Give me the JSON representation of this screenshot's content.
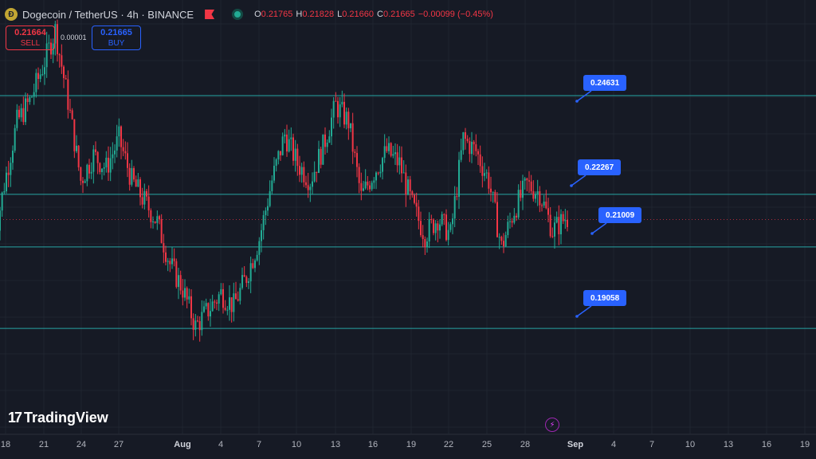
{
  "header": {
    "title": "Dogecoin / TetherUS · 4h · BINANCE",
    "ohlc": {
      "o_label": "O",
      "o": "0.21765",
      "h_label": "H",
      "h": "0.21828",
      "l_label": "L",
      "l": "0.21660",
      "c_label": "C",
      "c": "0.21665",
      "change": "−0.00099 (−0.45%)"
    }
  },
  "trade": {
    "sell_price": "0.21664",
    "sell_label": "SELL",
    "spread": "0.00001",
    "buy_price": "0.21665",
    "buy_label": "BUY"
  },
  "branding": {
    "logo_text": "TradingView"
  },
  "chart_data": {
    "type": "candlestick",
    "title": "Dogecoin / TetherUS · 4h · BINANCE",
    "x_tick_labels": [
      "18",
      "21",
      "24",
      "27",
      "Aug",
      "4",
      "7",
      "10",
      "13",
      "16",
      "19",
      "22",
      "25",
      "28",
      "Sep",
      "4",
      "7",
      "10",
      "13",
      "16",
      "19"
    ],
    "horizontal_levels": [
      0.24631,
      0.22267,
      0.21009,
      0.19058
    ],
    "current_price": 0.21665,
    "ylim": [
      0.17,
      0.265
    ],
    "colors": {
      "up": "#22ab94",
      "down": "#f23645",
      "level_line": "#26a5a5",
      "tag": "#2962ff"
    },
    "series_anchors": [
      {
        "date": "Jul 17",
        "price": 0.208
      },
      {
        "date": "Jul 18",
        "price": 0.225
      },
      {
        "date": "Jul 19",
        "price": 0.24
      },
      {
        "date": "Jul 20",
        "price": 0.245
      },
      {
        "date": "Jul 21",
        "price": 0.253
      },
      {
        "date": "Jul 22",
        "price": 0.262
      },
      {
        "date": "Jul 23",
        "price": 0.245
      },
      {
        "date": "Jul 24",
        "price": 0.226
      },
      {
        "date": "Jul 25",
        "price": 0.232
      },
      {
        "date": "Jul 26",
        "price": 0.229
      },
      {
        "date": "Jul 27",
        "price": 0.236
      },
      {
        "date": "Jul 28",
        "price": 0.226
      },
      {
        "date": "Jul 29",
        "price": 0.221
      },
      {
        "date": "Jul 30",
        "price": 0.216
      },
      {
        "date": "Jul 31",
        "price": 0.206
      },
      {
        "date": "Aug 1",
        "price": 0.2
      },
      {
        "date": "Aug 2",
        "price": 0.191
      },
      {
        "date": "Aug 3",
        "price": 0.195
      },
      {
        "date": "Aug 4",
        "price": 0.199
      },
      {
        "date": "Aug 5",
        "price": 0.196
      },
      {
        "date": "Aug 6",
        "price": 0.203
      },
      {
        "date": "Aug 7",
        "price": 0.212
      },
      {
        "date": "Aug 8",
        "price": 0.226
      },
      {
        "date": "Aug 9",
        "price": 0.237
      },
      {
        "date": "Aug 10",
        "price": 0.23
      },
      {
        "date": "Aug 11",
        "price": 0.226
      },
      {
        "date": "Aug 12",
        "price": 0.234
      },
      {
        "date": "Aug 13",
        "price": 0.244
      },
      {
        "date": "Aug 14",
        "price": 0.24
      },
      {
        "date": "Aug 15",
        "price": 0.222
      },
      {
        "date": "Aug 16",
        "price": 0.228
      },
      {
        "date": "Aug 17",
        "price": 0.233
      },
      {
        "date": "Aug 18",
        "price": 0.23
      },
      {
        "date": "Aug 19",
        "price": 0.22
      },
      {
        "date": "Aug 20",
        "price": 0.213
      },
      {
        "date": "Aug 21",
        "price": 0.217
      },
      {
        "date": "Aug 22",
        "price": 0.213
      },
      {
        "date": "Aug 23",
        "price": 0.236
      },
      {
        "date": "Aug 24",
        "price": 0.233
      },
      {
        "date": "Aug 25",
        "price": 0.226
      },
      {
        "date": "Aug 26",
        "price": 0.21
      },
      {
        "date": "Aug 27",
        "price": 0.219
      },
      {
        "date": "Aug 28",
        "price": 0.225
      },
      {
        "date": "Aug 29",
        "price": 0.223
      },
      {
        "date": "Aug 30",
        "price": 0.214
      },
      {
        "date": "Aug 31",
        "price": 0.217
      }
    ]
  }
}
